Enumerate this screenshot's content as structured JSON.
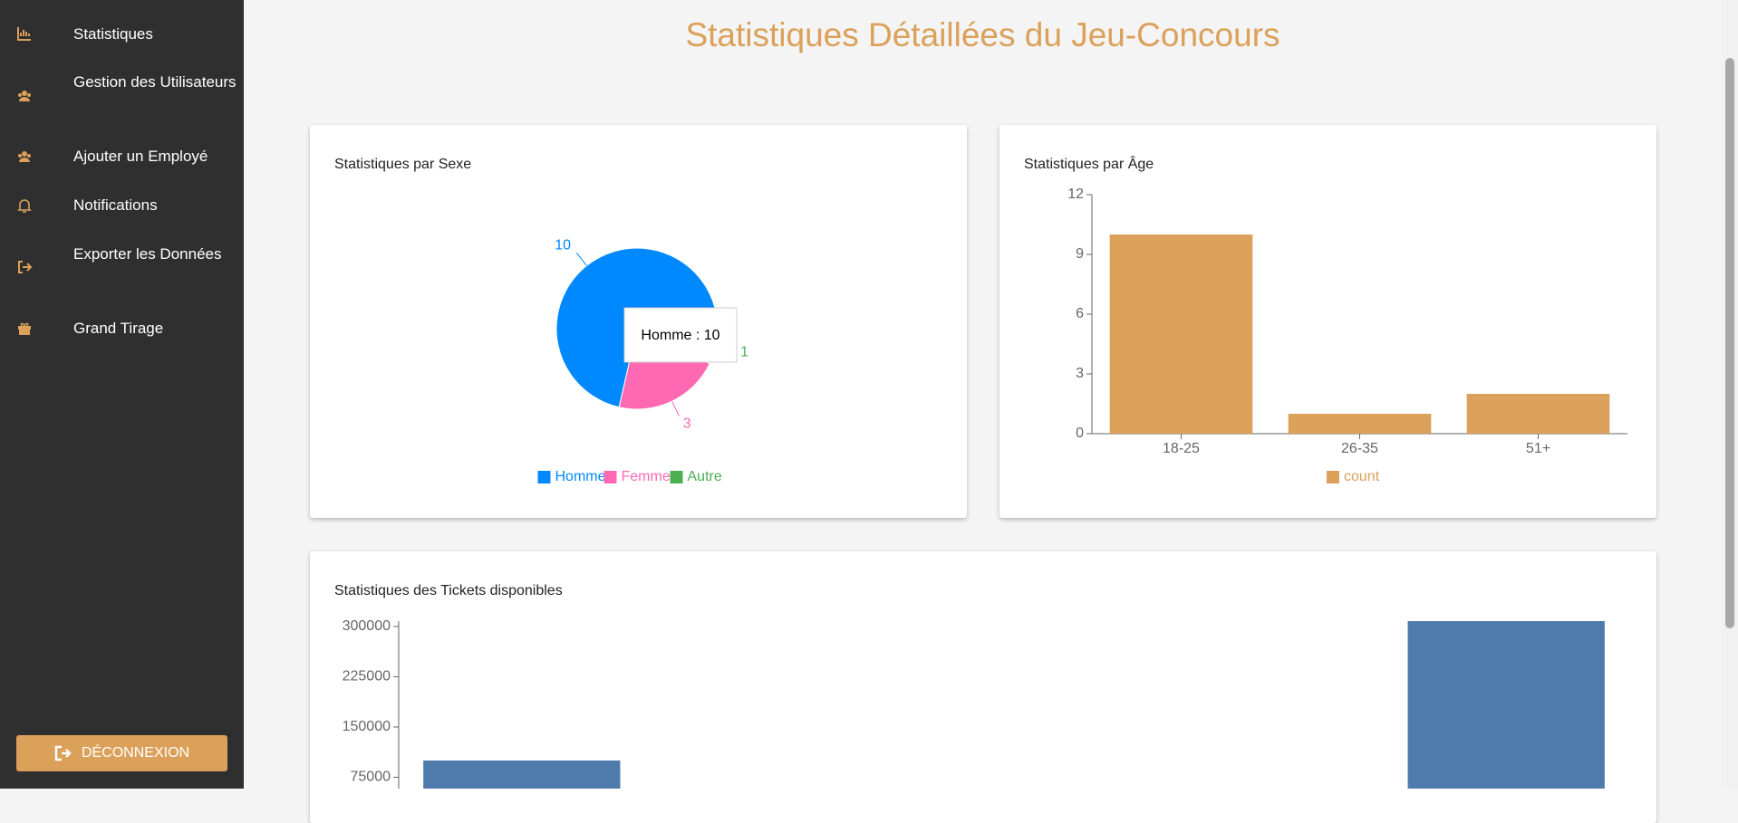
{
  "sidebar": {
    "items": [
      "Statistiques",
      "Gestion des Utilisateurs",
      "Ajouter un Employé",
      "Notifications",
      "Exporter les Données",
      "Grand Tirage"
    ],
    "logout": "DÉCONNEXION"
  },
  "title": "Statistiques Détaillées du Jeu-Concours",
  "chart_data": [
    {
      "type": "pie",
      "title": "Statistiques par Sexe",
      "categories": [
        "Homme",
        "Femme",
        "Autre"
      ],
      "values": [
        10,
        3,
        1
      ],
      "colors": [
        "#0088fe",
        "#ff69b4",
        "#4caf50"
      ],
      "tooltip": "Homme : 10"
    },
    {
      "type": "bar",
      "title": "Statistiques par Âge",
      "categories": [
        "18-25",
        "26-35",
        "51+"
      ],
      "series": [
        {
          "name": "count",
          "color": "#dba15a",
          "values": [
            10,
            1,
            2
          ]
        }
      ],
      "ylim": [
        0,
        12
      ],
      "yticks": [
        0,
        3,
        6,
        9,
        12
      ]
    },
    {
      "type": "bar",
      "title": "Statistiques des Tickets disponibles",
      "categories": [
        null,
        null,
        null,
        null,
        null
      ],
      "series": [
        {
          "color": "#4e7bac",
          "values": [
            100000,
            0,
            0,
            0,
            308000
          ]
        }
      ],
      "ylim": [
        0,
        308000
      ],
      "yticks": [
        75000,
        150000,
        225000,
        300000
      ]
    }
  ]
}
